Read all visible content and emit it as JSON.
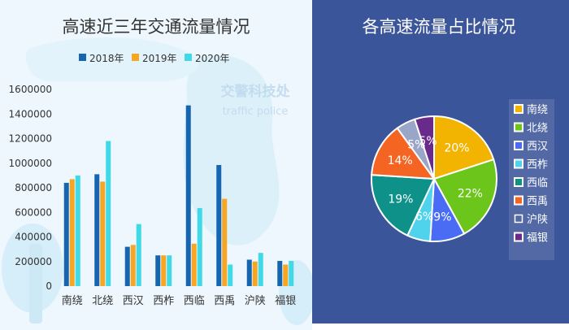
{
  "chart_data": [
    {
      "type": "bar",
      "title": "高速近三年交通流量情况",
      "categories": [
        "南绕",
        "北绕",
        "西汉",
        "西柞",
        "西临",
        "西禹",
        "沪陕",
        "福银"
      ],
      "series": [
        {
          "name": "2018年",
          "color": "#1565b0",
          "values": [
            840000,
            910000,
            320000,
            250000,
            1470000,
            985000,
            215000,
            205000
          ]
        },
        {
          "name": "2019年",
          "color": "#f6a623",
          "values": [
            870000,
            850000,
            335000,
            250000,
            345000,
            710000,
            200000,
            175000
          ]
        },
        {
          "name": "2020年",
          "color": "#3fd9e8",
          "values": [
            900000,
            1180000,
            505000,
            250000,
            635000,
            175000,
            270000,
            205000
          ]
        }
      ],
      "yticks": [
        "0",
        "200000",
        "400000",
        "600000",
        "800000",
        "1000000",
        "1200000",
        "1400000",
        "1600000"
      ],
      "ylim": [
        0,
        1600000
      ],
      "legend_position": "top",
      "grid": false
    },
    {
      "type": "pie",
      "title": "各高速流量占比情况",
      "labels": [
        "南绕",
        "北绕",
        "西汉",
        "西柞",
        "西临",
        "西禹",
        "沪陕",
        "福银"
      ],
      "values": [
        20,
        22,
        9,
        6,
        19,
        14,
        5,
        5
      ],
      "value_labels": [
        "20%",
        "22%",
        "9%",
        "6%",
        "19%",
        "14%",
        "5%",
        "5%"
      ],
      "colors": [
        "#f2b400",
        "#6cc51a",
        "#4a6cf5",
        "#4fd2ec",
        "#0e9188",
        "#f46524",
        "#ffffff",
        "#6a2a8c"
      ],
      "legend_position": "right"
    }
  ],
  "watermark": {
    "title": "交警科技处",
    "subtitle": "traffic police"
  }
}
